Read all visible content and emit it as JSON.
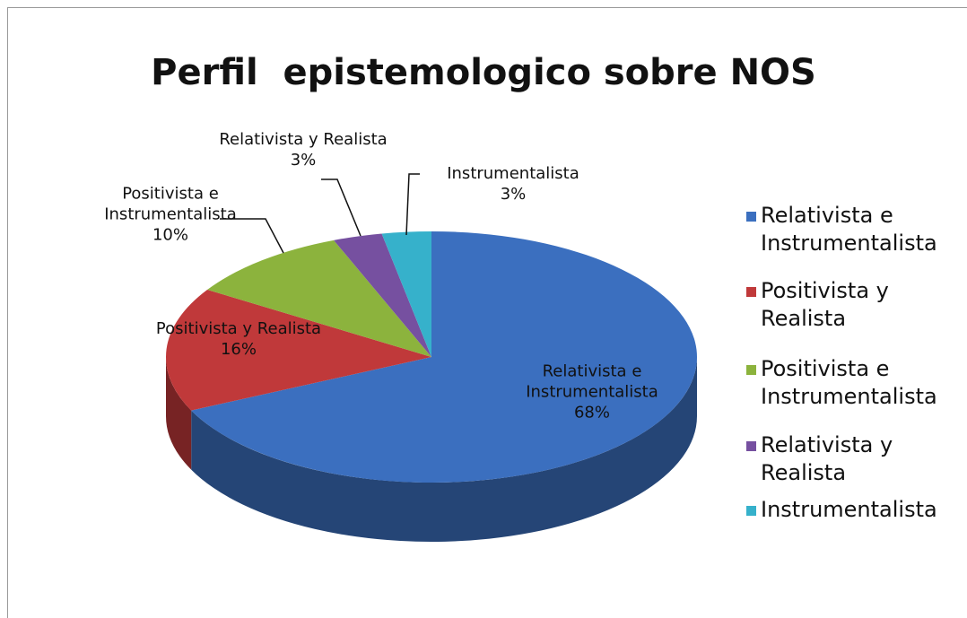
{
  "chart_data": {
    "type": "pie",
    "title": "Perfil  epistemologico sobre NOS",
    "categories": [
      "Relativista e Instrumentalista",
      "Positivista y Realista",
      "Positivista e Instrumentalista",
      "Relativista y Realista",
      "Instrumentalista"
    ],
    "values": [
      68,
      16,
      10,
      3,
      3
    ],
    "value_labels": [
      "68%",
      "16%",
      "10%",
      "3%",
      "3%"
    ],
    "colors": [
      "#3b6fbf",
      "#c0393a",
      "#8cb33d",
      "#7650a0",
      "#36b1cb"
    ],
    "legend": "right"
  }
}
